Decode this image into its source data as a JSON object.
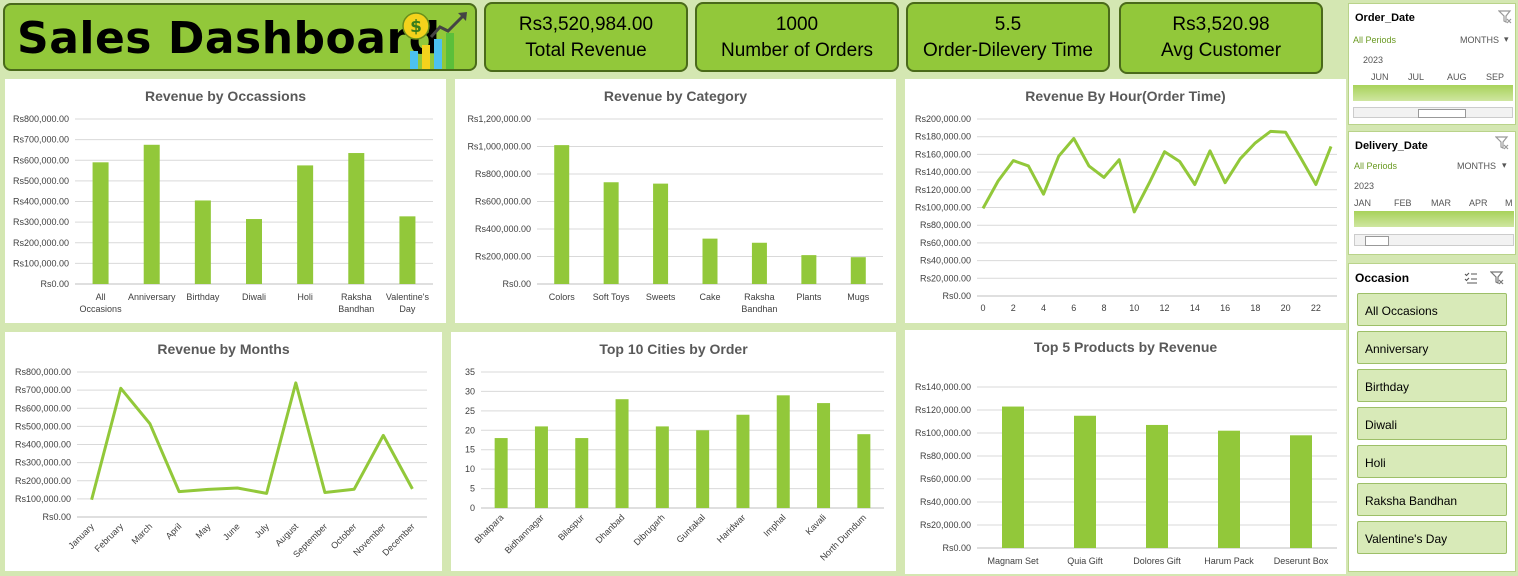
{
  "title": "Sales Dashboard",
  "kpis": [
    {
      "value": "Rs3,520,984.00",
      "label": "Total Revenue"
    },
    {
      "value": "1000",
      "label": "Number of Orders"
    },
    {
      "value": "5.5",
      "label": "Order-Dilevery Time"
    },
    {
      "value": "Rs3,520.98",
      "label": "Avg Customer"
    }
  ],
  "colors": {
    "accent": "#92c83a",
    "bar": "#92c83a",
    "border": "#4a6a1a",
    "background": "#d4e7b2"
  },
  "slicers": {
    "order_date": {
      "title": "Order_Date",
      "period": "All Periods",
      "unit": "MONTHS",
      "year": "2023",
      "months": [
        "JUN",
        "JUL",
        "AUG",
        "SEP"
      ]
    },
    "delivery_date": {
      "title": "Delivery_Date",
      "period": "All Periods",
      "unit": "MONTHS",
      "year": "2023",
      "months": [
        "JAN",
        "FEB",
        "MAR",
        "APR",
        "M"
      ]
    },
    "occasion": {
      "title": "Occasion",
      "items": [
        "All Occasions",
        "Anniversary",
        "Birthday",
        "Diwali",
        "Holi",
        "Raksha Bandhan",
        "Valentine's Day"
      ]
    }
  },
  "chart_data": [
    {
      "type": "bar",
      "title": "Revenue by Occassions",
      "categories": [
        "All\nOccasions",
        "Anniversary",
        "Birthday",
        "Diwali",
        "Holi",
        "Raksha\nBandhan",
        "Valentine's\nDay"
      ],
      "values": [
        590000,
        675000,
        405000,
        315000,
        575000,
        635000,
        328000
      ],
      "ylim": [
        0,
        800000
      ],
      "yticks": [
        0,
        100000,
        200000,
        300000,
        400000,
        500000,
        600000,
        700000,
        800000
      ],
      "ytick_labels": [
        "Rs0.00",
        "Rs100,000.00",
        "Rs200,000.00",
        "Rs300,000.00",
        "Rs400,000.00",
        "Rs500,000.00",
        "Rs600,000.00",
        "Rs700,000.00",
        "Rs800,000.00"
      ],
      "grid": true
    },
    {
      "type": "bar",
      "title": "Revenue  by Category",
      "categories": [
        "Colors",
        "Soft Toys",
        "Sweets",
        "Cake",
        "Raksha\nBandhan",
        "Plants",
        "Mugs"
      ],
      "values": [
        1010000,
        740000,
        730000,
        330000,
        300000,
        210000,
        195000
      ],
      "ylim": [
        0,
        1200000
      ],
      "yticks": [
        0,
        200000,
        400000,
        600000,
        800000,
        1000000,
        1200000
      ],
      "ytick_labels": [
        "Rs0.00",
        "Rs200,000.00",
        "Rs400,000.00",
        "Rs600,000.00",
        "Rs800,000.00",
        "Rs1,000,000.00",
        "Rs1,200,000.00"
      ],
      "grid": true
    },
    {
      "type": "line",
      "title": "Revenue By Hour(Order Time)",
      "x": [
        0,
        1,
        2,
        3,
        4,
        5,
        6,
        7,
        8,
        9,
        10,
        11,
        12,
        13,
        14,
        15,
        16,
        17,
        18,
        19,
        20,
        21,
        22,
        23
      ],
      "values": [
        99000,
        130000,
        153000,
        147000,
        115000,
        158000,
        178000,
        147000,
        134000,
        154000,
        95000,
        128000,
        163000,
        152000,
        126000,
        164000,
        128000,
        155000,
        173000,
        186000,
        185000,
        156000,
        126000,
        169000
      ],
      "xticks": [
        0,
        2,
        4,
        6,
        8,
        10,
        12,
        14,
        16,
        18,
        20,
        22
      ],
      "ylim": [
        0,
        200000
      ],
      "yticks": [
        0,
        20000,
        40000,
        60000,
        80000,
        100000,
        120000,
        140000,
        160000,
        180000,
        200000
      ],
      "ytick_labels": [
        "Rs0.00",
        "Rs20,000.00",
        "Rs40,000.00",
        "Rs60,000.00",
        "Rs80,000.00",
        "Rs100,000.00",
        "Rs120,000.00",
        "Rs140,000.00",
        "Rs160,000.00",
        "Rs180,000.00",
        "Rs200,000.00"
      ],
      "grid": true
    },
    {
      "type": "line",
      "title": "Revenue by Months",
      "categories": [
        "January",
        "February",
        "March",
        "April",
        "May",
        "June",
        "July",
        "August",
        "September",
        "October",
        "November",
        "December"
      ],
      "values": [
        95000,
        710000,
        515000,
        140000,
        152000,
        160000,
        130000,
        740000,
        135000,
        153000,
        450000,
        155000
      ],
      "ylim": [
        0,
        800000
      ],
      "yticks": [
        0,
        100000,
        200000,
        300000,
        400000,
        500000,
        600000,
        700000,
        800000
      ],
      "ytick_labels": [
        "Rs0.00",
        "Rs100,000.00",
        "Rs200,000.00",
        "Rs300,000.00",
        "Rs400,000.00",
        "Rs500,000.00",
        "Rs600,000.00",
        "Rs700,000.00",
        "Rs800,000.00"
      ],
      "grid": true
    },
    {
      "type": "bar",
      "title": "Top 10 Cities by Order",
      "categories": [
        "Bhatpara",
        "Bidhannagar",
        "Bilaspur",
        "Dhanbad",
        "Dibrugarh",
        "Guntakal",
        "Haridwar",
        "Imphal",
        "Kavali",
        "North Dumdum"
      ],
      "values": [
        18,
        21,
        18,
        28,
        21,
        20,
        24,
        29,
        27,
        19
      ],
      "ylim": [
        0,
        35
      ],
      "yticks": [
        0,
        5,
        10,
        15,
        20,
        25,
        30,
        35
      ],
      "ytick_labels": [
        "0",
        "5",
        "10",
        "15",
        "20",
        "25",
        "30",
        "35"
      ],
      "grid": true
    },
    {
      "type": "bar",
      "title": "Top 5 Products by Revenue",
      "categories": [
        "Magnam Set",
        "Quia Gift",
        "Dolores Gift",
        "Harum Pack",
        "Deserunt Box"
      ],
      "values": [
        123000,
        115000,
        107000,
        102000,
        98000
      ],
      "ylim": [
        0,
        140000
      ],
      "yticks": [
        0,
        20000,
        40000,
        60000,
        80000,
        100000,
        120000,
        140000
      ],
      "ytick_labels": [
        "Rs0.00",
        "Rs20,000.00",
        "Rs40,000.00",
        "Rs60,000.00",
        "Rs80,000.00",
        "Rs100,000.00",
        "Rs120,000.00",
        "Rs140,000.00"
      ],
      "grid": true
    }
  ]
}
